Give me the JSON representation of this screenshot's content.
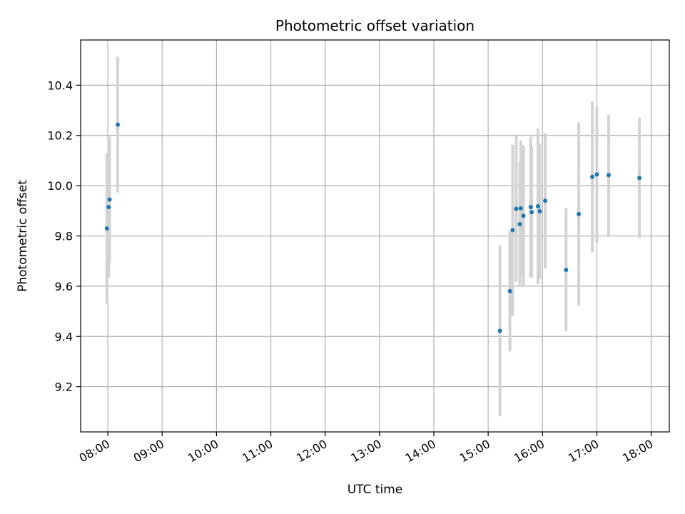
{
  "chart_data": {
    "type": "scatter",
    "title": "Photometric offset variation",
    "xlabel": "UTC time",
    "ylabel": "Photometric offset",
    "grid": true,
    "xlim": [
      "07:30",
      "18:20"
    ],
    "ylim": [
      9.02,
      10.58
    ],
    "x_ticks": [
      "08:00",
      "09:00",
      "10:00",
      "11:00",
      "12:00",
      "13:00",
      "14:00",
      "15:00",
      "16:00",
      "17:00",
      "18:00"
    ],
    "y_ticks": [
      9.2,
      9.4,
      9.6,
      9.8,
      10.0,
      10.2,
      10.4
    ],
    "marker_color": "#1f77b4",
    "errorbar_color": "#d3d3d3",
    "points": [
      {
        "x": "07:59",
        "y": 9.83,
        "err": 0.3
      },
      {
        "x": "08:01",
        "y": 9.915,
        "err": 0.28
      },
      {
        "x": "08:02",
        "y": 9.945,
        "err": 0.25
      },
      {
        "x": "08:11",
        "y": 10.243,
        "err": 0.27
      },
      {
        "x": "15:13",
        "y": 9.422,
        "err": 0.34
      },
      {
        "x": "15:24",
        "y": 9.58,
        "err": 0.24
      },
      {
        "x": "15:27",
        "y": 9.823,
        "err": 0.34
      },
      {
        "x": "15:31",
        "y": 9.908,
        "err": 0.29
      },
      {
        "x": "15:35",
        "y": 9.847,
        "err": 0.25
      },
      {
        "x": "15:36",
        "y": 9.91,
        "err": 0.27
      },
      {
        "x": "15:39",
        "y": 9.88,
        "err": 0.28
      },
      {
        "x": "15:47",
        "y": 9.915,
        "err": 0.28
      },
      {
        "x": "15:48",
        "y": 9.895,
        "err": 0.26
      },
      {
        "x": "15:55",
        "y": 9.918,
        "err": 0.31
      },
      {
        "x": "15:57",
        "y": 9.898,
        "err": 0.27
      },
      {
        "x": "16:03",
        "y": 9.94,
        "err": 0.27
      },
      {
        "x": "16:26",
        "y": 9.665,
        "err": 0.245
      },
      {
        "x": "16:40",
        "y": 9.887,
        "err": 0.365
      },
      {
        "x": "16:55",
        "y": 10.035,
        "err": 0.3
      },
      {
        "x": "17:00",
        "y": 10.045,
        "err": 0.27
      },
      {
        "x": "17:13",
        "y": 10.042,
        "err": 0.24
      },
      {
        "x": "17:47",
        "y": 10.031,
        "err": 0.24
      }
    ]
  }
}
